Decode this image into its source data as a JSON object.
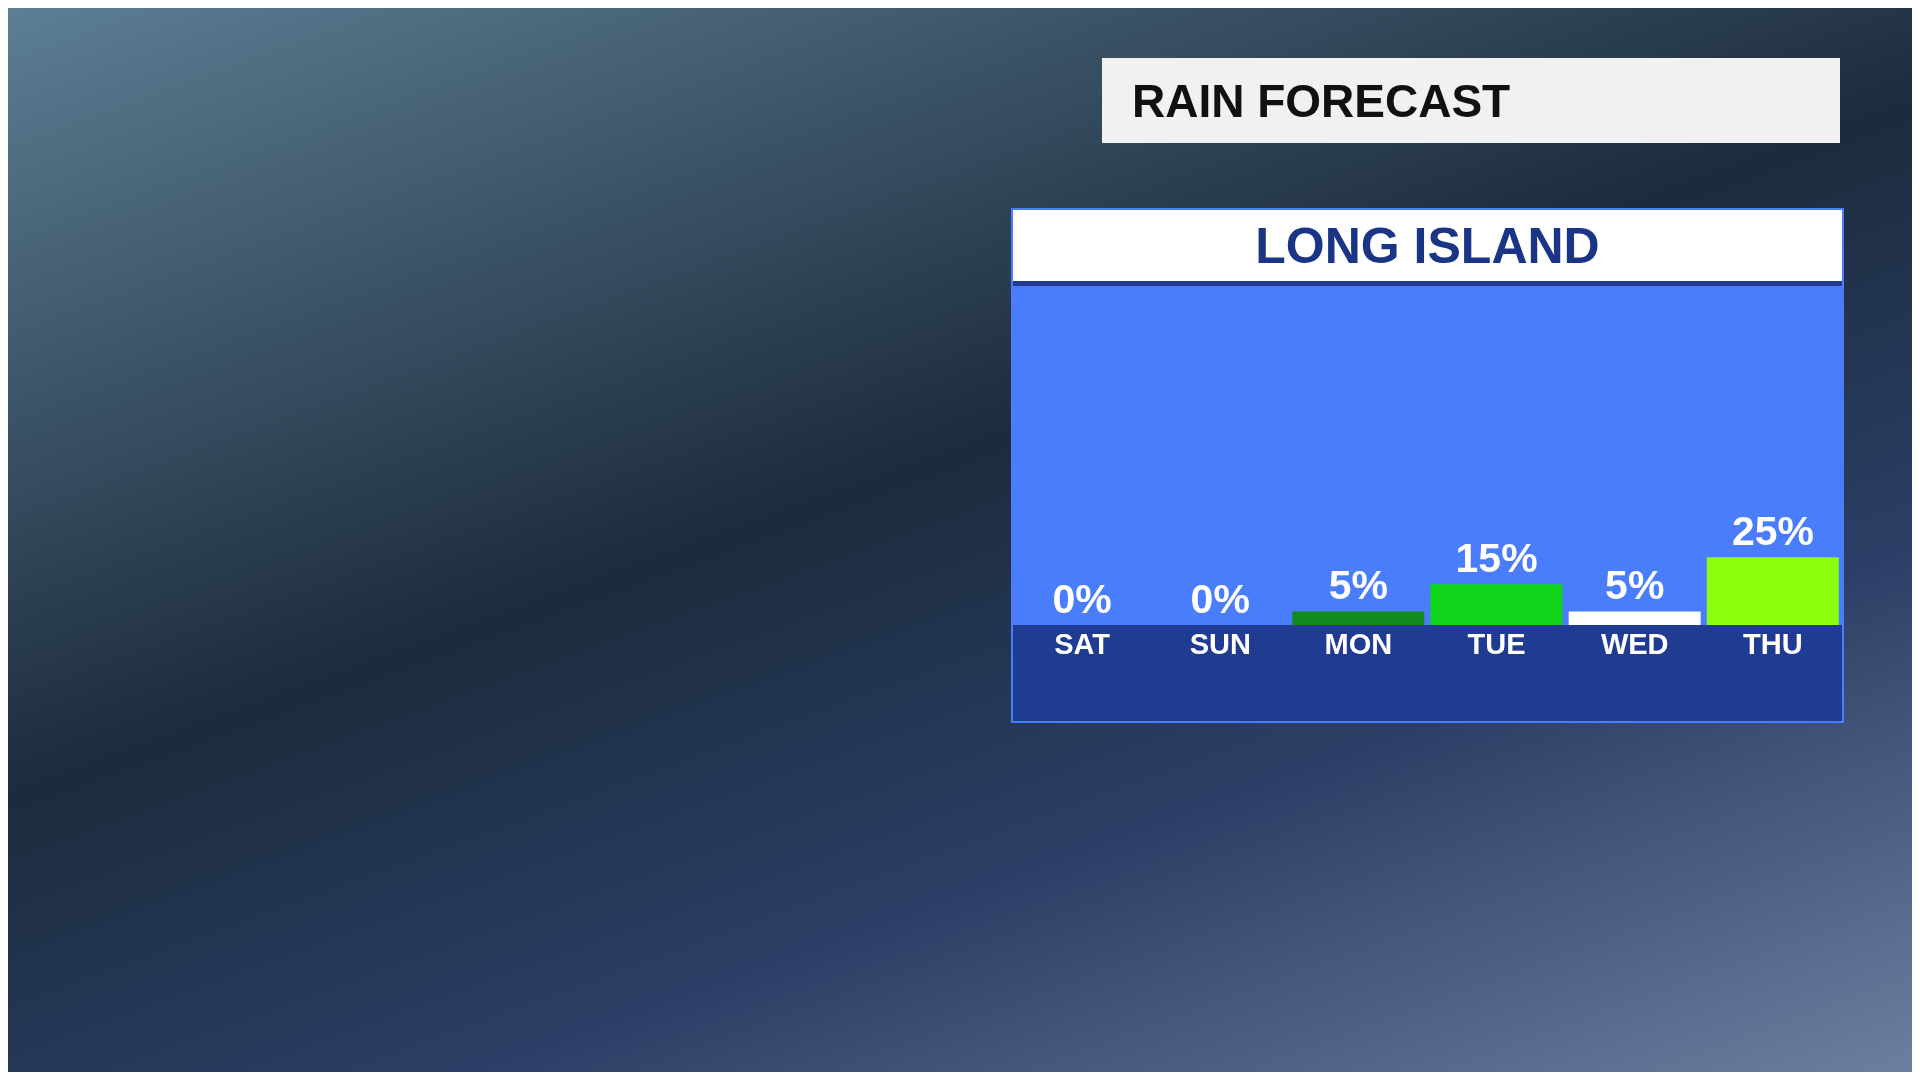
{
  "chart_data": {
    "type": "bar",
    "title": "RAIN FORECAST",
    "subtitle": "LONG ISLAND",
    "categories": [
      "SAT",
      "SUN",
      "MON",
      "TUE",
      "WED",
      "THU"
    ],
    "values": [
      0,
      0,
      5,
      15,
      5,
      25
    ],
    "colors": [
      "#ffffff",
      "#ffffff",
      "#128a1e",
      "#10d51a",
      "#ffffff",
      "#8cff0e"
    ],
    "value_labels": [
      "0%",
      "0%",
      "5%",
      "15%",
      "5%",
      "25%"
    ]
  }
}
